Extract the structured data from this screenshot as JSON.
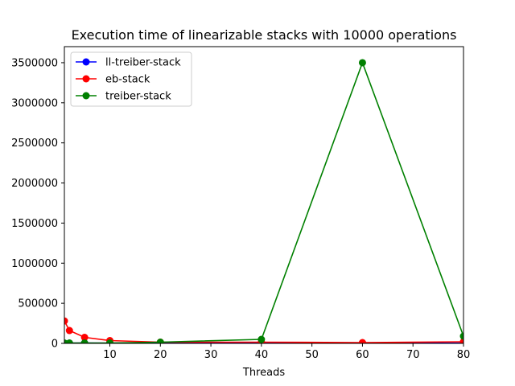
{
  "chart_data": {
    "type": "line",
    "title": "Execution time of linearizable stacks with 10000 operations",
    "xlabel": "Threads",
    "ylabel": "",
    "xlim": [
      1,
      80
    ],
    "ylim": [
      0,
      3700000
    ],
    "xticks": [
      10,
      20,
      30,
      40,
      50,
      60,
      70,
      80
    ],
    "xtick_labels": [
      "10",
      "20",
      "30",
      "40",
      "50",
      "60",
      "70",
      "80"
    ],
    "yticks": [
      0,
      500000,
      1000000,
      1500000,
      2000000,
      2500000,
      3000000,
      3500000
    ],
    "ytick_labels": [
      "0",
      "500000",
      "1000000",
      "1500000",
      "2000000",
      "2500000",
      "3000000",
      "3500000"
    ],
    "grid": false,
    "legend_position": "top-left",
    "series": [
      {
        "name": "ll-treiber-stack",
        "color": "#0000ff",
        "x": [
          1,
          2,
          5,
          10,
          20,
          40,
          60,
          80
        ],
        "y": [
          3000,
          3000,
          4000,
          3000,
          3000,
          2000,
          2000,
          3000
        ]
      },
      {
        "name": "eb-stack",
        "color": "#ff0000",
        "x": [
          1,
          2,
          5,
          10,
          20,
          40,
          60,
          80
        ],
        "y": [
          280000,
          160000,
          75000,
          35000,
          15000,
          15000,
          10000,
          20000
        ]
      },
      {
        "name": "treiber-stack",
        "color": "#008000",
        "x": [
          1,
          2,
          5,
          10,
          20,
          40,
          60,
          80
        ],
        "y": [
          5000,
          5000,
          5000,
          5000,
          15000,
          50000,
          3500000,
          90000
        ]
      }
    ]
  }
}
